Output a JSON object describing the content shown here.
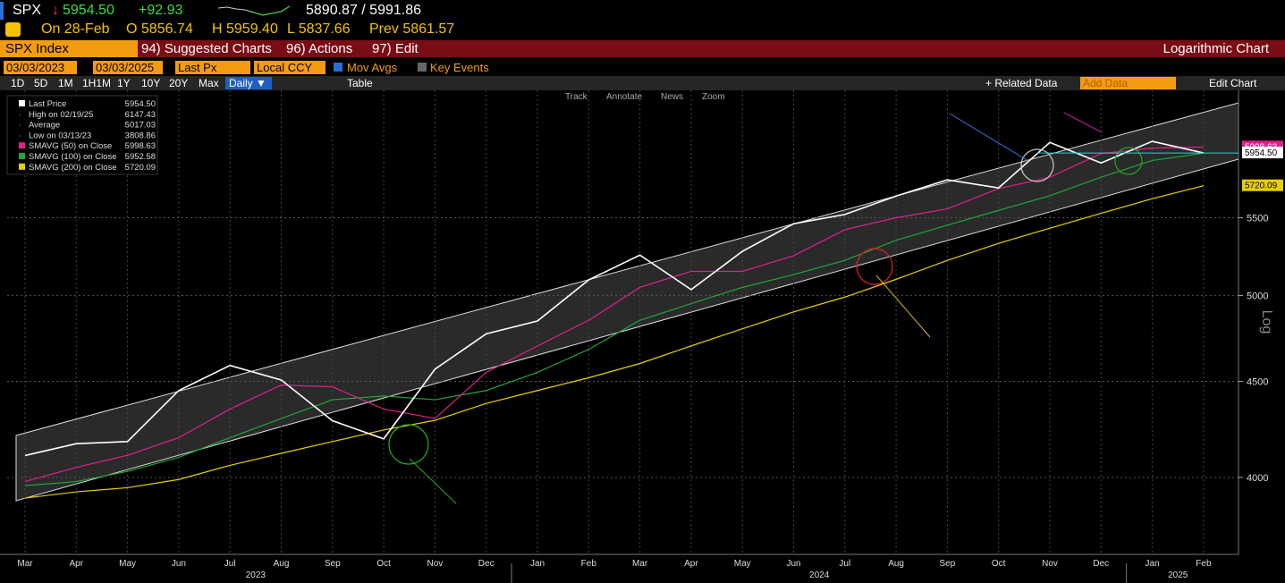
{
  "header": {
    "ticker": "SPX",
    "last": "5954.50",
    "change": "+92.93",
    "range": "5890.87 / 5991.86",
    "date": "On 28-Feb",
    "open": "O 5856.74",
    "high": "H 5959.40",
    "low": "L 5837.66",
    "prev": "Prev 5861.57"
  },
  "menu": {
    "security": "SPX Index",
    "items": [
      "94) Suggested Charts",
      "96) Actions",
      "97) Edit"
    ],
    "chart_kind": "Logarithmic Chart"
  },
  "controls": {
    "start": "03/03/2023",
    "end": "03/03/2025",
    "field": "Last Px",
    "currency": "Local CCY",
    "mov_avgs": "Mov Avgs",
    "key_events": "Key Events",
    "periods": [
      "1D",
      "5D",
      "1M",
      "1H1M",
      "1Y",
      "10Y",
      "20Y",
      "Max"
    ],
    "frequency": "Daily",
    "table": "Table",
    "tools": [
      "Track",
      "Annotate",
      "News",
      "Zoom"
    ],
    "related": "+ Related Data",
    "add_data": "Add Data",
    "edit_chart": "Edit Chart"
  },
  "stats": [
    {
      "label": "High on 02/19/25",
      "value": "6147.43"
    },
    {
      "label": "Average",
      "value": "5017.03"
    },
    {
      "label": "Low on 03/13/23",
      "value": "3808.86"
    }
  ],
  "chart_data": {
    "type": "line",
    "categories": [
      "Mar",
      "Apr",
      "May",
      "Jun",
      "Jul",
      "Aug",
      "Sep",
      "Oct",
      "Nov",
      "Dec",
      "Jan",
      "Feb",
      "Mar",
      "Apr",
      "May",
      "Jun",
      "Jul",
      "Aug",
      "Sep",
      "Oct",
      "Nov",
      "Dec",
      "Jan",
      "Feb"
    ],
    "years": [
      "2023",
      "2024",
      "2025"
    ],
    "series": [
      {
        "name": "Last Price",
        "legend_value": "5954.50",
        "color": "#ffffff",
        "values": [
          4109,
          4169,
          4180,
          4450,
          4589,
          4508,
          4288,
          4194,
          4568,
          4770,
          4846,
          5096,
          5254,
          5036,
          5278,
          5460,
          5522,
          5648,
          5762,
          5705,
          6032,
          5882,
          6040,
          5954.5
        ]
      },
      {
        "name": "SMAVG (50)  on Close",
        "legend_value": "5998.63",
        "color": "#e0208c",
        "values": [
          3980,
          4050,
          4110,
          4200,
          4350,
          4480,
          4470,
          4350,
          4300,
          4550,
          4700,
          4850,
          5050,
          5150,
          5150,
          5250,
          5420,
          5500,
          5560,
          5700,
          5780,
          5950,
          5990,
          5998.63
        ]
      },
      {
        "name": "SMAVG (100)  on Close",
        "legend_value": "5952.58",
        "color": "#1fa53a",
        "values": [
          3960,
          3980,
          4030,
          4100,
          4200,
          4300,
          4400,
          4420,
          4400,
          4450,
          4550,
          4680,
          4850,
          4950,
          5050,
          5130,
          5220,
          5350,
          5450,
          5550,
          5650,
          5780,
          5900,
          5952.58
        ]
      },
      {
        "name": "SMAVG (200)  on Close",
        "legend_value": "5720.09",
        "color": "#e8d000",
        "values": [
          3900,
          3930,
          3950,
          3990,
          4060,
          4120,
          4180,
          4240,
          4290,
          4380,
          4450,
          4520,
          4600,
          4700,
          4800,
          4900,
          4990,
          5100,
          5220,
          5330,
          5430,
          5530,
          5630,
          5720.09
        ]
      }
    ],
    "ylim": [
      3640,
      6430
    ],
    "yticks": [
      4000,
      4500,
      5000,
      5500
    ],
    "log_scale": true,
    "grid": true,
    "y_axis_label": "Log"
  }
}
